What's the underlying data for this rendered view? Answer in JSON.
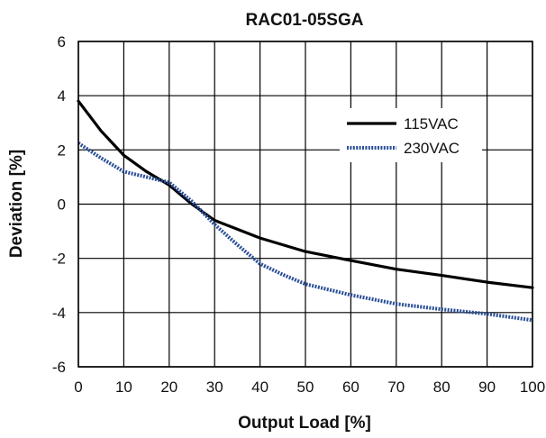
{
  "chart_data": {
    "type": "line",
    "title": "RAC01-05SGA",
    "xlabel": "Output Load [%]",
    "ylabel": "Deviation [%]",
    "xlim": [
      0,
      100
    ],
    "ylim": [
      -6,
      6
    ],
    "x_ticks": [
      0,
      10,
      20,
      30,
      40,
      50,
      60,
      70,
      80,
      90,
      100
    ],
    "y_ticks": [
      6,
      4,
      2,
      0,
      -2,
      -4,
      -6
    ],
    "grid": true,
    "legend_position": "top-right",
    "series": [
      {
        "name": "115VAC",
        "color": "#000000",
        "style": "solid",
        "x": [
          0,
          5,
          10,
          15,
          20,
          25,
          30,
          40,
          50,
          60,
          70,
          80,
          90,
          100
        ],
        "y": [
          3.8,
          2.7,
          1.8,
          1.2,
          0.7,
          0.0,
          -0.6,
          -1.25,
          -1.75,
          -2.08,
          -2.4,
          -2.63,
          -2.88,
          -3.08
        ]
      },
      {
        "name": "230VAC",
        "color": "#2a4f96",
        "style": "dotted",
        "x": [
          0,
          5,
          10,
          15,
          20,
          25,
          30,
          35,
          40,
          45,
          50,
          60,
          70,
          80,
          90,
          100
        ],
        "y": [
          2.25,
          1.7,
          1.2,
          1.0,
          0.8,
          0.1,
          -0.75,
          -1.5,
          -2.2,
          -2.6,
          -2.95,
          -3.35,
          -3.68,
          -3.88,
          -4.05,
          -4.28
        ]
      }
    ]
  }
}
